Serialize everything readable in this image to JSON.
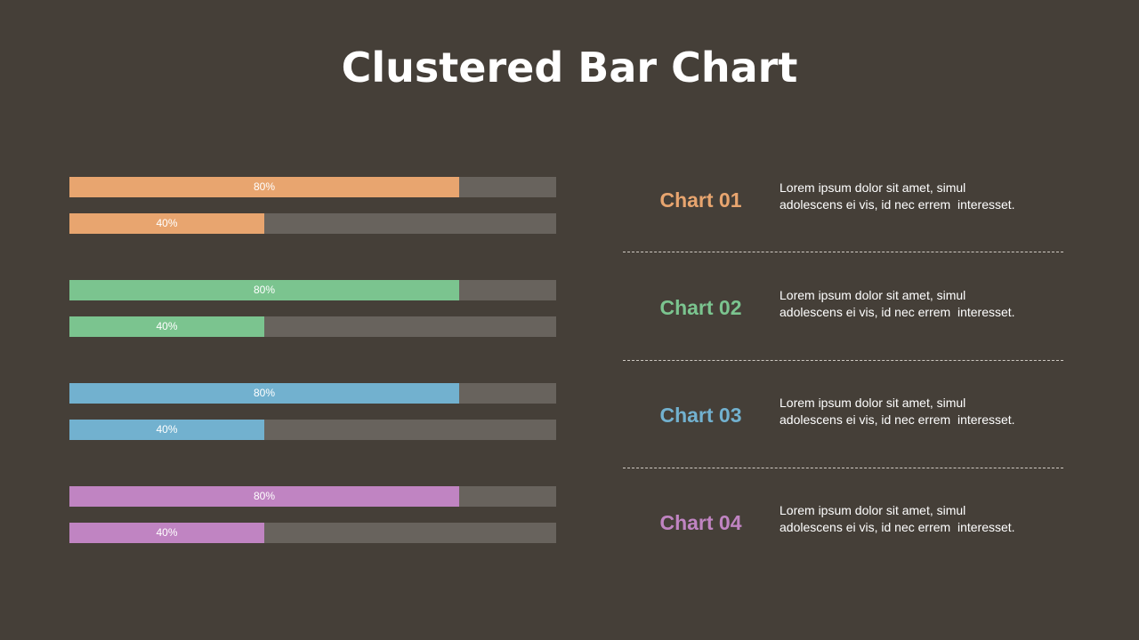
{
  "title": "Clustered Bar Chart",
  "chart_data": {
    "type": "bar",
    "orientation": "horizontal",
    "max": 100,
    "groups": [
      {
        "name": "Chart 01",
        "color": "#e8a56f",
        "values": [
          80,
          40
        ]
      },
      {
        "name": "Chart 02",
        "color": "#7bc48f",
        "values": [
          80,
          40
        ]
      },
      {
        "name": "Chart 03",
        "color": "#72b1cf",
        "values": [
          80,
          40
        ]
      },
      {
        "name": "Chart 04",
        "color": "#c084c2",
        "values": [
          80,
          40
        ]
      }
    ],
    "data_labels": [
      [
        "80%",
        "40%"
      ],
      [
        "80%",
        "40%"
      ],
      [
        "80%",
        "40%"
      ],
      [
        "80%",
        "40%"
      ]
    ]
  },
  "legend": [
    {
      "name": "Chart 01",
      "line1": "Lorem ipsum dolor sit amet, simul",
      "line2": "adolescens ei vis, id nec errem  interesset."
    },
    {
      "name": "Chart 02",
      "line1": "Lorem ipsum dolor sit amet, simul",
      "line2": "adolescens ei vis, id nec errem  interesset."
    },
    {
      "name": "Chart 03",
      "line1": "Lorem ipsum dolor sit amet, simul",
      "line2": "adolescens ei vis, id nec errem  interesset."
    },
    {
      "name": "Chart 04",
      "line1": "Lorem ipsum dolor sit amet, simul",
      "line2": "adolescens ei vis, id nec errem  interesset."
    }
  ],
  "colors": {
    "background": "#453f38",
    "track": "#68635d"
  }
}
